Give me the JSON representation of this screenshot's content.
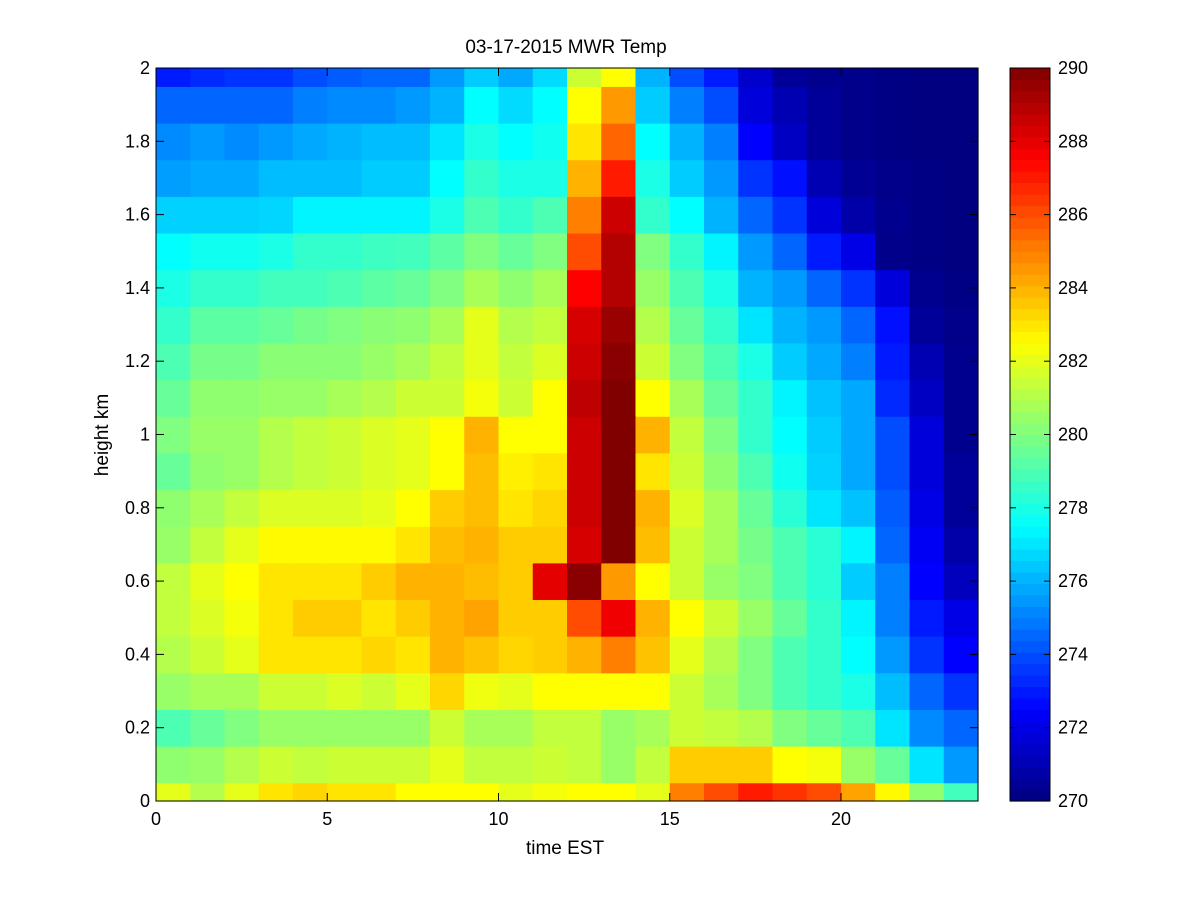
{
  "chart_data": {
    "type": "heatmap",
    "title": "03-17-2015 MWR Temp",
    "xlabel": "time EST",
    "ylabel": "height km",
    "xlim": [
      0,
      24
    ],
    "ylim": [
      0,
      2
    ],
    "x_ticks": [
      0,
      5,
      10,
      15,
      20
    ],
    "x_tick_labels": [
      "0",
      "5",
      "10",
      "15",
      "20"
    ],
    "y_ticks": [
      0,
      0.2,
      0.4,
      0.6,
      0.8,
      1,
      1.2,
      1.4,
      1.6,
      1.8,
      2
    ],
    "y_tick_labels": [
      "0",
      "0.2",
      "0.4",
      "0.6",
      "0.8",
      "1",
      "1.2",
      "1.4",
      "1.6",
      "1.8",
      "2"
    ],
    "colorbar": {
      "colormap": "jet",
      "min": 270,
      "max": 290,
      "ticks": [
        270,
        272,
        274,
        276,
        278,
        280,
        282,
        284,
        286,
        288,
        290
      ],
      "tick_labels": [
        "270",
        "272",
        "274",
        "276",
        "278",
        "280",
        "282",
        "284",
        "286",
        "288",
        "290"
      ]
    },
    "grid": false,
    "time_bins": [
      0,
      1,
      2,
      3,
      4,
      5,
      6,
      7,
      8,
      9,
      10,
      11,
      12,
      13,
      14,
      15,
      16,
      17,
      18,
      19,
      20,
      21,
      22,
      23
    ],
    "height_bins_km": [
      0.0,
      0.05,
      0.15,
      0.25,
      0.35,
      0.45,
      0.55,
      0.65,
      0.75,
      0.85,
      0.95,
      1.05,
      1.15,
      1.25,
      1.35,
      1.45,
      1.55,
      1.65,
      1.75,
      1.85,
      1.95
    ],
    "values": [
      [
        282,
        281,
        282,
        283,
        283.3,
        283,
        283,
        282.5,
        282.5,
        282.5,
        282,
        282.3,
        282.5,
        282.5,
        282,
        285,
        286,
        287,
        286.5,
        286,
        284.3,
        282.6,
        280.3,
        278.8
      ],
      [
        280.3,
        280.5,
        281,
        281.5,
        281.3,
        281.5,
        281.5,
        281.5,
        282,
        281.3,
        281.3,
        281.5,
        281.3,
        280.5,
        281.3,
        283.5,
        283.5,
        283.5,
        282.5,
        282.3,
        280.5,
        279.5,
        277,
        275.5
      ],
      [
        279,
        279.5,
        280,
        280.5,
        280.5,
        280.5,
        280.5,
        280.5,
        281.5,
        280.8,
        280.8,
        281.3,
        281.3,
        280.5,
        280.8,
        281.5,
        281.3,
        281,
        280,
        279.5,
        279,
        277,
        275.2,
        274.5
      ],
      [
        280.5,
        280.8,
        280.8,
        281.5,
        281.5,
        281.8,
        281.5,
        282,
        283.3,
        282.2,
        282,
        282.5,
        282.5,
        282.5,
        282.5,
        281.5,
        280.8,
        280,
        279,
        278.5,
        278,
        276.2,
        274.5,
        273.5
      ],
      [
        281,
        281.5,
        282,
        283,
        283,
        283,
        283.3,
        283,
        284,
        283.7,
        283.3,
        283.5,
        284,
        285,
        283.7,
        282,
        281,
        280,
        279,
        278.5,
        277.5,
        275.5,
        273.5,
        272.5
      ],
      [
        281.3,
        281.8,
        282.3,
        283,
        283.5,
        283.5,
        283,
        283.5,
        284,
        284.3,
        283.5,
        283.5,
        286,
        287.8,
        284,
        282.5,
        281.5,
        280.5,
        279.5,
        278.5,
        277.3,
        275,
        273,
        272
      ],
      [
        281.3,
        282,
        282.5,
        283,
        283,
        283,
        283.5,
        284,
        284,
        283.8,
        283.5,
        288,
        289.8,
        284.5,
        282.5,
        281.5,
        280.5,
        280,
        279,
        278.3,
        276.5,
        275,
        272.5,
        271.2
      ],
      [
        280.5,
        281.3,
        282,
        282.6,
        282.6,
        282.6,
        282.6,
        283,
        283.8,
        284,
        283.5,
        283.5,
        288.3,
        290,
        283.8,
        281.5,
        280.8,
        279.8,
        279,
        278.3,
        277.3,
        274.5,
        272.3,
        270.8
      ],
      [
        280.3,
        280.8,
        281.3,
        281.8,
        281.8,
        281.8,
        282,
        282.5,
        283.5,
        283.8,
        283,
        283.3,
        288.5,
        290,
        284,
        281.8,
        280.8,
        279.5,
        278.3,
        277,
        276.3,
        274.3,
        272,
        270.5
      ],
      [
        279.5,
        280.3,
        280.5,
        281,
        281.3,
        281.5,
        281.8,
        282,
        282.5,
        283.8,
        282.8,
        283,
        288.5,
        290,
        283,
        281.5,
        280.3,
        279,
        277.8,
        276.6,
        275.8,
        274,
        271.8,
        270.5
      ],
      [
        280,
        280.5,
        280.5,
        281,
        281.3,
        281.5,
        281.8,
        282,
        282.5,
        284,
        282.5,
        282.5,
        288.5,
        290,
        284,
        281.3,
        280,
        278.5,
        277.5,
        276.5,
        275.8,
        274,
        271.8,
        270.3
      ],
      [
        279.5,
        280.3,
        280.3,
        280.5,
        280.5,
        280.8,
        281,
        281.5,
        281.5,
        282.3,
        281.5,
        282.5,
        288.8,
        290,
        282.5,
        280.8,
        279.5,
        278.5,
        277.3,
        276.3,
        275.8,
        273.3,
        271.3,
        270.3
      ],
      [
        279,
        279.8,
        279.8,
        280.2,
        280.2,
        280.2,
        280.5,
        280.8,
        281.3,
        282,
        281.3,
        281.8,
        288.5,
        289.8,
        281.5,
        280,
        279,
        278,
        276.5,
        275.8,
        275,
        273,
        271,
        270.3
      ],
      [
        278.5,
        279.3,
        279.3,
        279.5,
        279.8,
        280,
        280.2,
        280.3,
        280.8,
        282,
        281,
        281.3,
        288.3,
        289.5,
        281,
        279.5,
        278.5,
        277,
        276,
        275.5,
        274.5,
        272.8,
        270.5,
        270.2
      ],
      [
        278,
        278.5,
        278.5,
        278.8,
        278.8,
        279,
        279.3,
        279.5,
        280,
        280.8,
        280.3,
        280.8,
        287.5,
        289,
        280.5,
        279,
        278,
        276,
        275.5,
        274.5,
        273.5,
        271.8,
        270.3,
        270.1
      ],
      [
        277.5,
        277.8,
        277.8,
        278,
        278.5,
        278.5,
        278.7,
        278.8,
        279.3,
        280,
        279.5,
        280,
        286,
        289,
        280,
        278.5,
        277.3,
        275.5,
        274.5,
        273,
        272,
        270.2,
        270.1,
        270
      ],
      [
        276.6,
        276.6,
        276.6,
        276.7,
        277.3,
        277.3,
        277.3,
        277.3,
        278,
        279,
        278.5,
        279,
        285,
        288.5,
        278.5,
        277.5,
        276,
        274.5,
        273.5,
        271.8,
        270.8,
        270.3,
        270.1,
        270
      ],
      [
        275.6,
        275.8,
        275.8,
        276.2,
        276.2,
        276.2,
        276.5,
        276.5,
        277.5,
        278.5,
        278,
        278,
        284,
        287,
        278,
        276.5,
        275.5,
        273.5,
        272.8,
        271,
        270.4,
        270.2,
        270.1,
        270
      ],
      [
        275.2,
        275.5,
        275.2,
        275.5,
        275.8,
        276,
        276.2,
        276.2,
        277,
        278,
        277.5,
        277.8,
        283,
        285.5,
        277.5,
        276,
        275,
        272.5,
        271.3,
        270.5,
        270.2,
        270.1,
        270,
        270
      ],
      [
        274.5,
        274.5,
        274.5,
        274.5,
        275,
        275.2,
        275.2,
        275.5,
        276,
        277.5,
        276.8,
        277.5,
        282.5,
        284.5,
        276.5,
        275,
        274,
        271.8,
        271,
        270.5,
        270.2,
        270.1,
        270,
        270
      ],
      [
        273,
        273.3,
        273.5,
        273.5,
        274,
        274.3,
        274.5,
        274.5,
        275.5,
        276.5,
        275.8,
        276.8,
        281.5,
        282.5,
        276,
        274,
        273,
        271.5,
        270.5,
        270.3,
        270.2,
        270.1,
        270,
        270
      ]
    ],
    "colorbar_samples": 64
  }
}
